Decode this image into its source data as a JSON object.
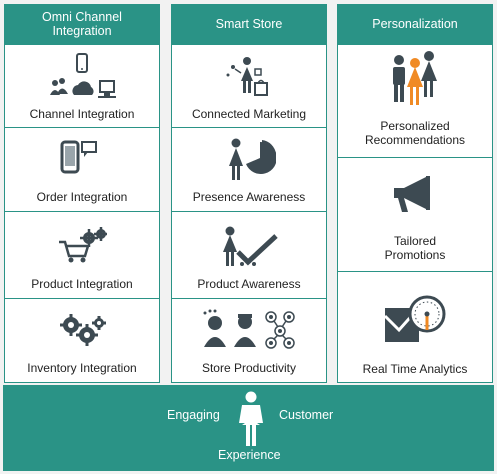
{
  "columns": [
    {
      "title": "Omni Channel Integration",
      "items": [
        {
          "label": "Channel Integration",
          "icon": "channel-devices-icon"
        },
        {
          "label": "Order Integration",
          "icon": "phone-order-icon"
        },
        {
          "label": "Product Integration",
          "icon": "cart-gears-icon"
        },
        {
          "label": "Inventory  Integration",
          "icon": "gears-icon"
        }
      ]
    },
    {
      "title": "Smart Store",
      "items": [
        {
          "label": "Connected Marketing",
          "icon": "shopper-connected-icon"
        },
        {
          "label": "Presence Awareness",
          "icon": "woman-pie-chart-icon"
        },
        {
          "label": "Product Awareness",
          "icon": "woman-checkmark-icon"
        },
        {
          "label": "Store Productivity",
          "icon": "staff-network-icon"
        }
      ]
    },
    {
      "title": "Personalization",
      "items": [
        {
          "label_line1": "Personalized",
          "label_line2": "Recommendations",
          "icon": "people-group-icon"
        },
        {
          "label_line1": "Tailored",
          "label_line2": "Promotions",
          "icon": "megaphone-icon"
        },
        {
          "label": "Real Time Analytics",
          "icon": "analytics-gauge-icon"
        }
      ]
    }
  ],
  "footer": {
    "left": "Engaging",
    "right": "Customer",
    "bottom": "Experience",
    "icon": "customer-woman-icon"
  },
  "colors": {
    "teal": "#2a9386",
    "icon_gray": "#3d4a52",
    "accent_orange": "#f08a24"
  }
}
